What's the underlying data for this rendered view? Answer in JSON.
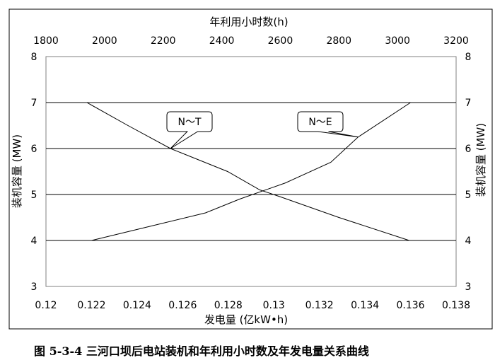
{
  "caption": "图 5-3-4 三河口坝后电站装机和年利用小时数及年发电量关系曲线",
  "chart_data": {
    "type": "line",
    "x_bottom": {
      "label": "发电量 (亿kW•h)",
      "range": [
        0.12,
        0.138
      ],
      "ticks": [
        "0.12",
        "0.122",
        "0.124",
        "0.126",
        "0.128",
        "0.13",
        "0.132",
        "0.134",
        "0.136",
        "0.138"
      ]
    },
    "x_top": {
      "label": "年利用小时数(h)",
      "range": [
        1800,
        3200
      ],
      "ticks": [
        "1800",
        "2000",
        "2200",
        "2400",
        "2600",
        "2800",
        "3000",
        "3200"
      ]
    },
    "y": {
      "label": "装机容量 (MW)",
      "range": [
        3,
        8
      ],
      "ticks": [
        "3",
        "4",
        "5",
        "6",
        "7",
        "8"
      ]
    },
    "grid": "horizontal",
    "series": [
      {
        "name": "N～T",
        "axis": "x_top",
        "points": [
          [
            1940,
            7
          ],
          [
            2080,
            6.5
          ],
          [
            2225,
            6.0
          ],
          [
            2420,
            5.5
          ],
          [
            2530,
            5.1
          ],
          [
            2600,
            4.95
          ],
          [
            2800,
            4.5
          ],
          [
            3040,
            4.0
          ]
        ]
      },
      {
        "name": "N～E",
        "axis": "x_bottom",
        "points": [
          [
            0.122,
            4.0
          ],
          [
            0.1245,
            4.3
          ],
          [
            0.127,
            4.6
          ],
          [
            0.1285,
            4.9
          ],
          [
            0.1305,
            5.25
          ],
          [
            0.1325,
            5.7
          ],
          [
            0.1337,
            6.25
          ],
          [
            0.136,
            7.0
          ]
        ]
      }
    ]
  }
}
